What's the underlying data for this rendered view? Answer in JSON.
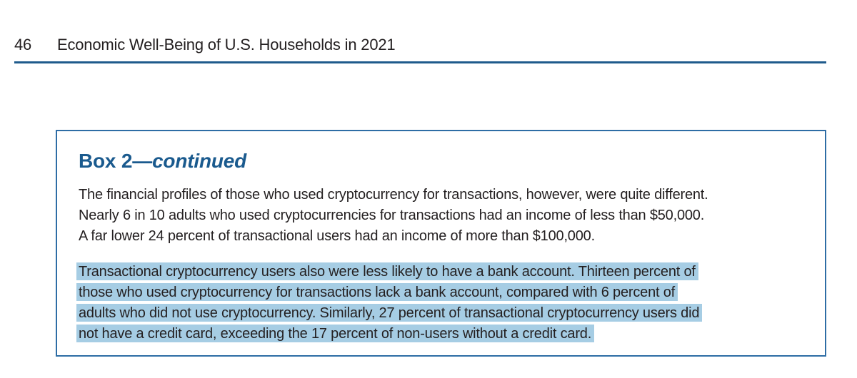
{
  "header": {
    "page_number": "46",
    "title": "Economic Well-Being of U.S. Households in 2021"
  },
  "box": {
    "title_main": "Box 2",
    "title_dash": "—",
    "title_continued": "continued",
    "paragraph1_lines": [
      "The financial profiles of those who used cryptocurrency for transactions, however, were quite different.",
      "Nearly 6 in 10 adults who used cryptocurrencies for transactions had an income of less than $50,000.",
      "A far lower 24 percent of transactional users had an income of more than $100,000."
    ],
    "paragraph2_lines": [
      "Transactional cryptocurrency users also were less likely to have a bank account. Thirteen percent of",
      "those who used cryptocurrency for transactions lack a bank account, compared with 6 percent of",
      "adults who did not use cryptocurrency. Similarly, 27 percent of transactional cryptocurrency users did",
      "not have a credit card, exceeding the 17 percent of non-users without a credit card."
    ]
  },
  "colors": {
    "accent_blue": "#1a5a8e",
    "rule_blue": "#1f5b8c",
    "box_border_blue": "#2e6da5",
    "highlight_blue": "#a6cde4",
    "text": "#231f20"
  }
}
